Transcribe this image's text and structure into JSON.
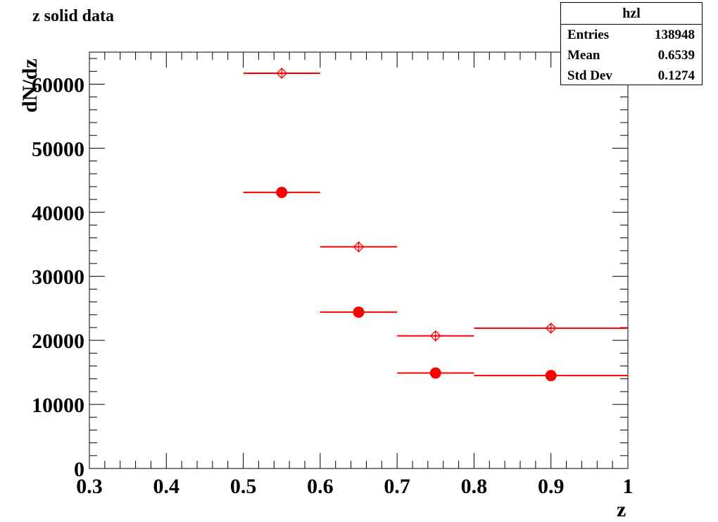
{
  "title": "z solid data",
  "stats": {
    "name": "hzl",
    "entries_label": "Entries",
    "entries_value": "138948",
    "mean_label": "Mean",
    "mean_value": "0.6539",
    "stddev_label": "Std Dev",
    "stddev_value": "0.1274"
  },
  "chart_data": {
    "type": "scatter",
    "xlabel": "z",
    "ylabel": "dN/dz",
    "xlim": [
      0.3,
      1.0
    ],
    "ylim": [
      0,
      65000
    ],
    "x_ticks": [
      "0.3",
      "0.4",
      "0.5",
      "0.6",
      "0.7",
      "0.8",
      "0.9",
      "1"
    ],
    "y_ticks": [
      "0",
      "10000",
      "20000",
      "30000",
      "40000",
      "50000",
      "60000"
    ],
    "color": "#ff0000",
    "series": [
      {
        "marker": "open-diamond",
        "points": [
          {
            "x": 0.55,
            "xlow": 0.5,
            "xhigh": 0.6,
            "y": 61700
          },
          {
            "x": 0.65,
            "xlow": 0.6,
            "xhigh": 0.7,
            "y": 34600
          },
          {
            "x": 0.75,
            "xlow": 0.7,
            "xhigh": 0.8,
            "y": 20700
          },
          {
            "x": 0.9,
            "xlow": 0.8,
            "xhigh": 1.0,
            "y": 21900
          }
        ]
      },
      {
        "marker": "filled-circle",
        "points": [
          {
            "x": 0.55,
            "xlow": 0.5,
            "xhigh": 0.6,
            "y": 43100
          },
          {
            "x": 0.65,
            "xlow": 0.6,
            "xhigh": 0.7,
            "y": 24400
          },
          {
            "x": 0.75,
            "xlow": 0.7,
            "xhigh": 0.8,
            "y": 14900
          },
          {
            "x": 0.9,
            "xlow": 0.8,
            "xhigh": 1.0,
            "y": 14500
          }
        ]
      }
    ]
  }
}
